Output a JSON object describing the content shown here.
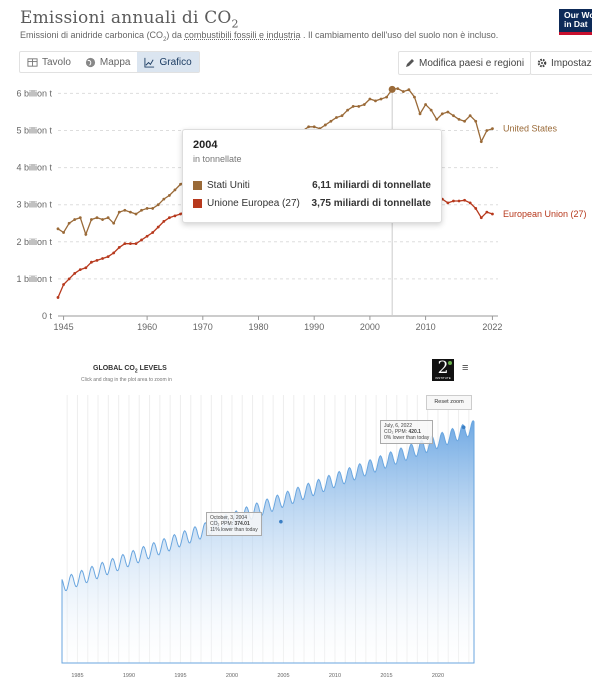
{
  "owid": {
    "title": "Emissioni annuali di CO",
    "title_sub": "2",
    "subtitle_pre": "Emissioni di anidride carbonica (CO",
    "subtitle_sub": "2",
    "subtitle_mid": ") da ",
    "subtitle_link": "combustibili fossili e industria",
    "subtitle_post": " . Il cambiamento dell'uso del suolo non è incluso.",
    "logo_line1": "Our Wo",
    "logo_line2": "in Dat",
    "tabs": [
      "Tavolo",
      "Mappa",
      "Grafico"
    ],
    "active_tab": "Grafico",
    "edit_button": "Modifica paesi e regioni",
    "settings_button": "Impostazio",
    "tooltip": {
      "year": "2004",
      "unit": "in tonnellate",
      "rows": [
        {
          "name": "Stati Uniti",
          "value": "6,11 miliardi di tonnellate",
          "color": "#9a6a38"
        },
        {
          "name": "Unione Europea (27)",
          "value": "3,75 miliardi di tonnellate",
          "color": "#b7391d"
        }
      ]
    },
    "chart_data": {
      "type": "line",
      "x_ticks": [
        "1945",
        "1960",
        "1970",
        "1980",
        "1990",
        "2000",
        "2010",
        "2022"
      ],
      "y_ticks": [
        "0 t",
        "1 billion t",
        "2 billion t",
        "3 billion t",
        "4 billion t",
        "5 billion t",
        "6 billion t"
      ],
      "xlim": [
        1944,
        2023
      ],
      "ylim": [
        0,
        6.2
      ],
      "hover_year": 2004,
      "series": [
        {
          "name": "United States",
          "color": "#9a6a38",
          "x": [
            1944,
            1945,
            1946,
            1947,
            1948,
            1949,
            1950,
            1951,
            1952,
            1953,
            1954,
            1955,
            1956,
            1957,
            1958,
            1959,
            1960,
            1961,
            1962,
            1963,
            1964,
            1965,
            1966,
            1967,
            1968,
            1969,
            1970,
            1971,
            1972,
            1973,
            1974,
            1975,
            1976,
            1977,
            1978,
            1979,
            1980,
            1981,
            1982,
            1983,
            1984,
            1985,
            1986,
            1987,
            1988,
            1989,
            1990,
            1991,
            1992,
            1993,
            1994,
            1995,
            1996,
            1997,
            1998,
            1999,
            2000,
            2001,
            2002,
            2003,
            2004,
            2005,
            2006,
            2007,
            2008,
            2009,
            2010,
            2011,
            2012,
            2013,
            2014,
            2015,
            2016,
            2017,
            2018,
            2019,
            2020,
            2021,
            2022
          ],
          "y": [
            2.35,
            2.25,
            2.5,
            2.6,
            2.65,
            2.2,
            2.6,
            2.65,
            2.6,
            2.65,
            2.5,
            2.8,
            2.85,
            2.8,
            2.75,
            2.85,
            2.9,
            2.9,
            3.0,
            3.15,
            3.25,
            3.4,
            3.55,
            3.65,
            3.8,
            3.95,
            4.05,
            4.1,
            4.3,
            4.45,
            4.3,
            4.2,
            4.45,
            4.6,
            4.75,
            4.85,
            4.75,
            4.6,
            4.4,
            4.45,
            4.6,
            4.6,
            4.6,
            4.8,
            5.0,
            5.1,
            5.1,
            5.05,
            5.15,
            5.25,
            5.35,
            5.4,
            5.55,
            5.65,
            5.65,
            5.7,
            5.85,
            5.8,
            5.85,
            5.9,
            6.11,
            6.13,
            6.05,
            6.1,
            5.9,
            5.45,
            5.7,
            5.55,
            5.3,
            5.45,
            5.5,
            5.4,
            5.3,
            5.25,
            5.4,
            5.25,
            4.7,
            5.0,
            5.05
          ]
        },
        {
          "name": "European Union (27)",
          "color": "#b7391d",
          "x": [
            1944,
            1945,
            1946,
            1947,
            1948,
            1949,
            1950,
            1951,
            1952,
            1953,
            1954,
            1955,
            1956,
            1957,
            1958,
            1959,
            1960,
            1961,
            1962,
            1963,
            1964,
            1965,
            1966,
            1967,
            1968,
            1969,
            1970,
            1971,
            1972,
            1973,
            1974,
            1975,
            1976,
            1977,
            1978,
            1979,
            1980,
            1981,
            1982,
            1983,
            1984,
            1985,
            1986,
            1987,
            1988,
            1989,
            1990,
            1991,
            1992,
            1993,
            1994,
            1995,
            1996,
            1997,
            1998,
            1999,
            2000,
            2001,
            2002,
            2003,
            2004,
            2005,
            2006,
            2007,
            2008,
            2009,
            2010,
            2011,
            2012,
            2013,
            2014,
            2015,
            2016,
            2017,
            2018,
            2019,
            2020,
            2021,
            2022
          ],
          "y": [
            0.5,
            0.85,
            1.0,
            1.15,
            1.25,
            1.3,
            1.45,
            1.5,
            1.55,
            1.6,
            1.7,
            1.85,
            1.95,
            1.95,
            1.95,
            2.05,
            2.15,
            2.25,
            2.4,
            2.55,
            2.65,
            2.7,
            2.75,
            2.85,
            2.95,
            3.1,
            3.3,
            3.35,
            3.45,
            3.6,
            3.55,
            3.45,
            3.65,
            3.6,
            3.75,
            3.85,
            3.8,
            3.65,
            3.55,
            3.5,
            3.55,
            3.6,
            3.6,
            3.65,
            3.6,
            3.65,
            3.85,
            3.8,
            3.7,
            3.65,
            3.6,
            3.65,
            3.75,
            3.7,
            3.7,
            3.65,
            3.65,
            3.7,
            3.7,
            3.75,
            3.75,
            3.7,
            3.72,
            3.65,
            3.55,
            3.25,
            3.35,
            3.25,
            3.2,
            3.15,
            3.05,
            3.1,
            3.1,
            3.12,
            3.05,
            2.9,
            2.65,
            2.8,
            2.75
          ]
        }
      ]
    }
  },
  "co2": {
    "title": "GLOBAL CO",
    "title_sub": "2",
    "title_post": " LEVELS",
    "subtitle": "Click and drag in the plot area to zoom in",
    "badge": "2",
    "badge_label": "INSTITUTE",
    "menu_icon": "≡",
    "reset_label": "Reset zoom",
    "tooltip_2004": {
      "date": "October, 3, 2004",
      "ppm_label": "CO₂ PPM: ",
      "ppm": "374.01",
      "note": "11% lower than today"
    },
    "tooltip_2022": {
      "date": "July, 6, 2022",
      "ppm_label": "CO₂ PPM: ",
      "ppm": "420.1",
      "note": "0% lower than today"
    },
    "chart_data": {
      "type": "area",
      "x_ticks": [
        "1985",
        "1990",
        "1995",
        "2000",
        "2005",
        "2010",
        "2015",
        "2020"
      ],
      "xlim": [
        1983.5,
        2023.5
      ],
      "ylim": [
        305,
        430
      ],
      "trend_start_ppm": 343,
      "trend_end_ppm": 420,
      "seasonal_amplitude_ppm": 3.5,
      "markers": [
        {
          "label": "October, 3, 2004",
          "x": 2004.75,
          "y": 374.01
        },
        {
          "label": "July, 6, 2022",
          "x": 2022.5,
          "y": 420.1
        }
      ]
    }
  }
}
